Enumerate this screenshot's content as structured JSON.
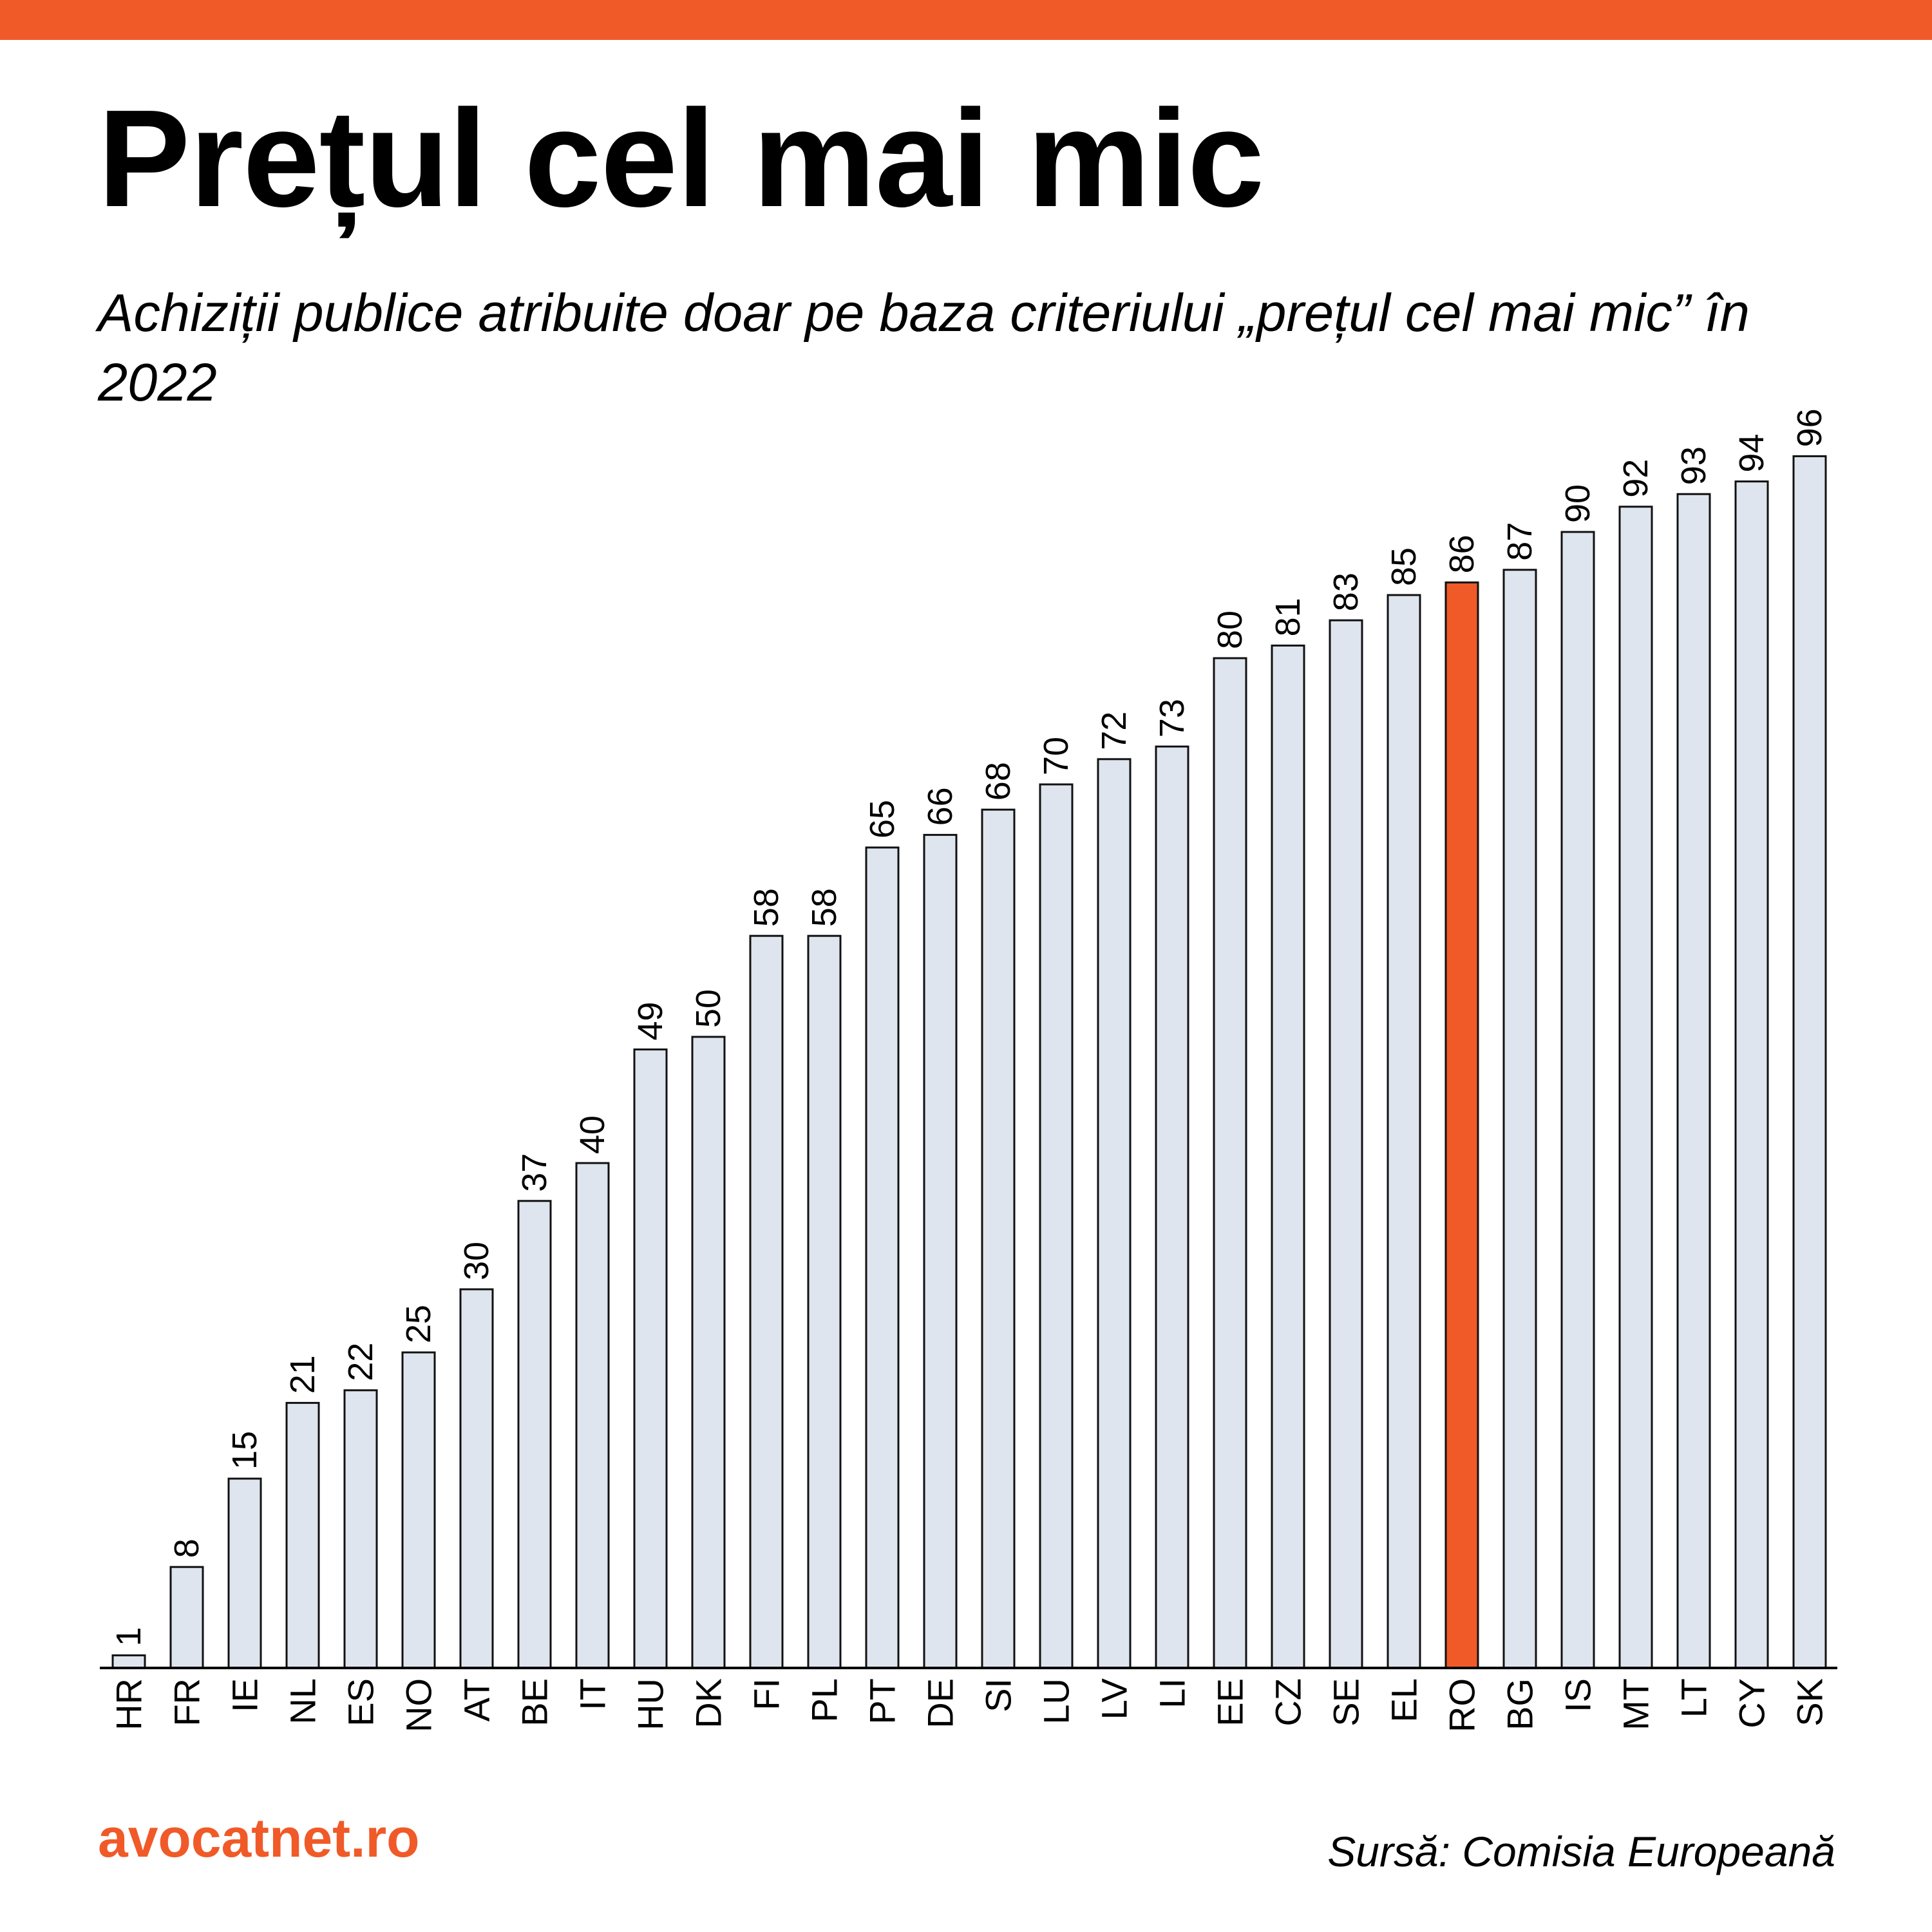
{
  "colors": {
    "accent": "#F05A28",
    "bar_fill": "#DFE5EE",
    "bar_stroke": "#111111",
    "text": "#000000"
  },
  "header": {
    "title": "Prețul cel mai mic",
    "subtitle": "Achiziții publice atribuite doar pe baza criteriului „prețul cel mai mic” în 2022"
  },
  "footer": {
    "brand": "avocatnet.ro",
    "source": "Sursă: Comisia Europeană"
  },
  "chart_data": {
    "type": "bar",
    "title": "Prețul cel mai mic",
    "subtitle": "Achiziții publice atribuite doar pe baza criteriului „prețul cel mai mic” în 2022",
    "xlabel": "",
    "ylabel": "",
    "ylim": [
      0,
      96
    ],
    "grid": false,
    "data_labels": true,
    "highlight_category": "RO",
    "categories": [
      "HR",
      "FR",
      "IE",
      "NL",
      "ES",
      "NO",
      "AT",
      "BE",
      "IT",
      "HU",
      "DK",
      "FI",
      "PL",
      "PT",
      "DE",
      "SI",
      "LU",
      "LV",
      "LI",
      "EE",
      "CZ",
      "SE",
      "EL",
      "RO",
      "BG",
      "IS",
      "MT",
      "LT",
      "CY",
      "SK"
    ],
    "values": [
      1,
      8,
      15,
      21,
      22,
      25,
      30,
      37,
      40,
      49,
      50,
      58,
      58,
      65,
      66,
      68,
      70,
      72,
      73,
      80,
      81,
      83,
      85,
      86,
      87,
      90,
      92,
      93,
      94,
      96
    ]
  }
}
